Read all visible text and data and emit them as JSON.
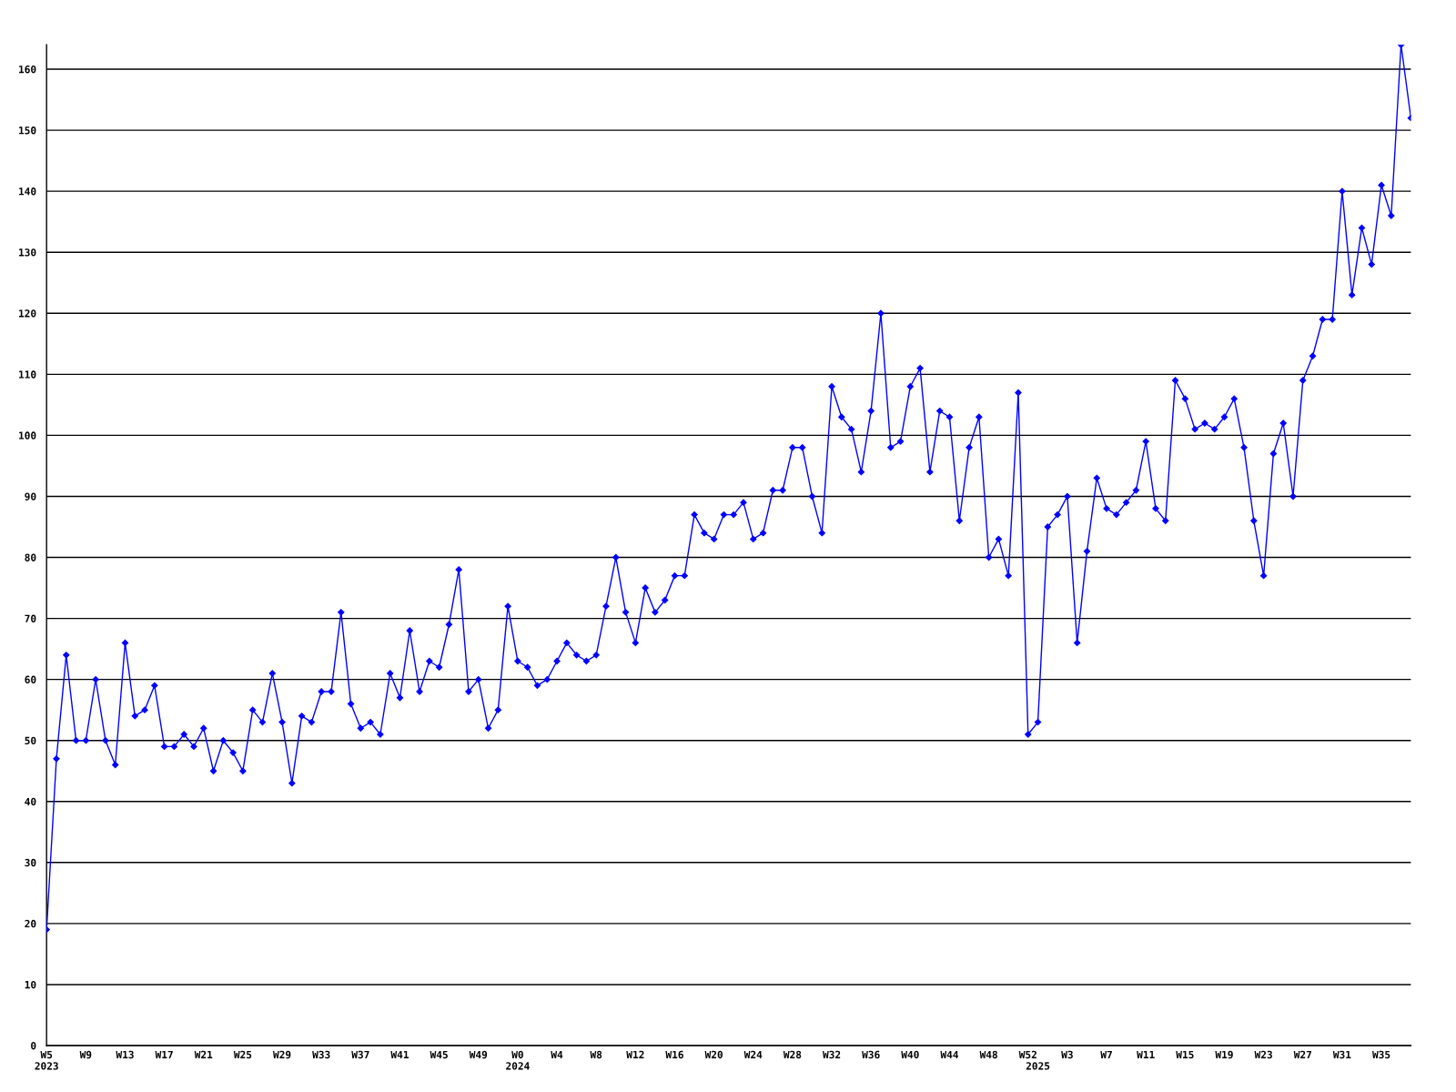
{
  "chart_data": {
    "type": "line",
    "categories": [
      "W5\n2023",
      null,
      null,
      null,
      "W9",
      null,
      null,
      null,
      "W13",
      null,
      null,
      null,
      "W17",
      null,
      null,
      null,
      "W21",
      null,
      null,
      null,
      "W25",
      null,
      null,
      null,
      "W29",
      null,
      null,
      null,
      "W33",
      null,
      null,
      null,
      "W37",
      null,
      null,
      null,
      "W41",
      null,
      null,
      null,
      "W45",
      null,
      null,
      null,
      "W49",
      null,
      null,
      null,
      "W0\n2024",
      null,
      null,
      null,
      "W4",
      null,
      null,
      null,
      "W8",
      null,
      null,
      null,
      "W12",
      null,
      null,
      null,
      "W16",
      null,
      null,
      null,
      "W20",
      null,
      null,
      null,
      "W24",
      null,
      null,
      null,
      "W28",
      null,
      null,
      null,
      "W32",
      null,
      null,
      null,
      "W36",
      null,
      null,
      null,
      "W40",
      null,
      null,
      null,
      "W44",
      null,
      null,
      null,
      "W48",
      null,
      null,
      null,
      "W52",
      "\n2025",
      null,
      null,
      "W3",
      null,
      null,
      null,
      "W7",
      null,
      null,
      null,
      "W11",
      null,
      null,
      null,
      "W15",
      null,
      null,
      null,
      "W19",
      null,
      null,
      null,
      "W23",
      null,
      null,
      null,
      "W27",
      null,
      null,
      null,
      "W31",
      null,
      null,
      null,
      "W35",
      null,
      null,
      null
    ],
    "series": [
      {
        "color": "#0000ff",
        "values": [
          19,
          47,
          64,
          50,
          50,
          60,
          50,
          46,
          66,
          54,
          55,
          59,
          49,
          49,
          51,
          49,
          52,
          45,
          50,
          48,
          45,
          55,
          53,
          61,
          53,
          43,
          54,
          53,
          58,
          58,
          71,
          56,
          52,
          53,
          51,
          61,
          57,
          68,
          58,
          63,
          62,
          69,
          78,
          58,
          60,
          52,
          55,
          72,
          63,
          62,
          59,
          60,
          63,
          66,
          64,
          63,
          64,
          72,
          80,
          71,
          66,
          75,
          71,
          73,
          77,
          77,
          87,
          84,
          83,
          87,
          87,
          89,
          83,
          84,
          91,
          91,
          98,
          98,
          90,
          84,
          108,
          103,
          101,
          94,
          104,
          120,
          98,
          99,
          108,
          111,
          94,
          104,
          103,
          86,
          98,
          103,
          80,
          83,
          77,
          107,
          51,
          53,
          85,
          87,
          90,
          66,
          81,
          93,
          88,
          87,
          89,
          91,
          99,
          88,
          86,
          109,
          106,
          101,
          102,
          101,
          103,
          106,
          98,
          86,
          77,
          97,
          102,
          90,
          109,
          113,
          119,
          119,
          140,
          123,
          134,
          128,
          141,
          136,
          164,
          152
        ]
      }
    ],
    "ylim": [
      0,
      164
    ],
    "yticks": [
      0,
      10,
      20,
      30,
      40,
      50,
      60,
      70,
      80,
      90,
      100,
      110,
      120,
      130,
      140,
      150,
      160
    ],
    "grid": "y",
    "marker": "diamond",
    "line_style": "solid"
  }
}
